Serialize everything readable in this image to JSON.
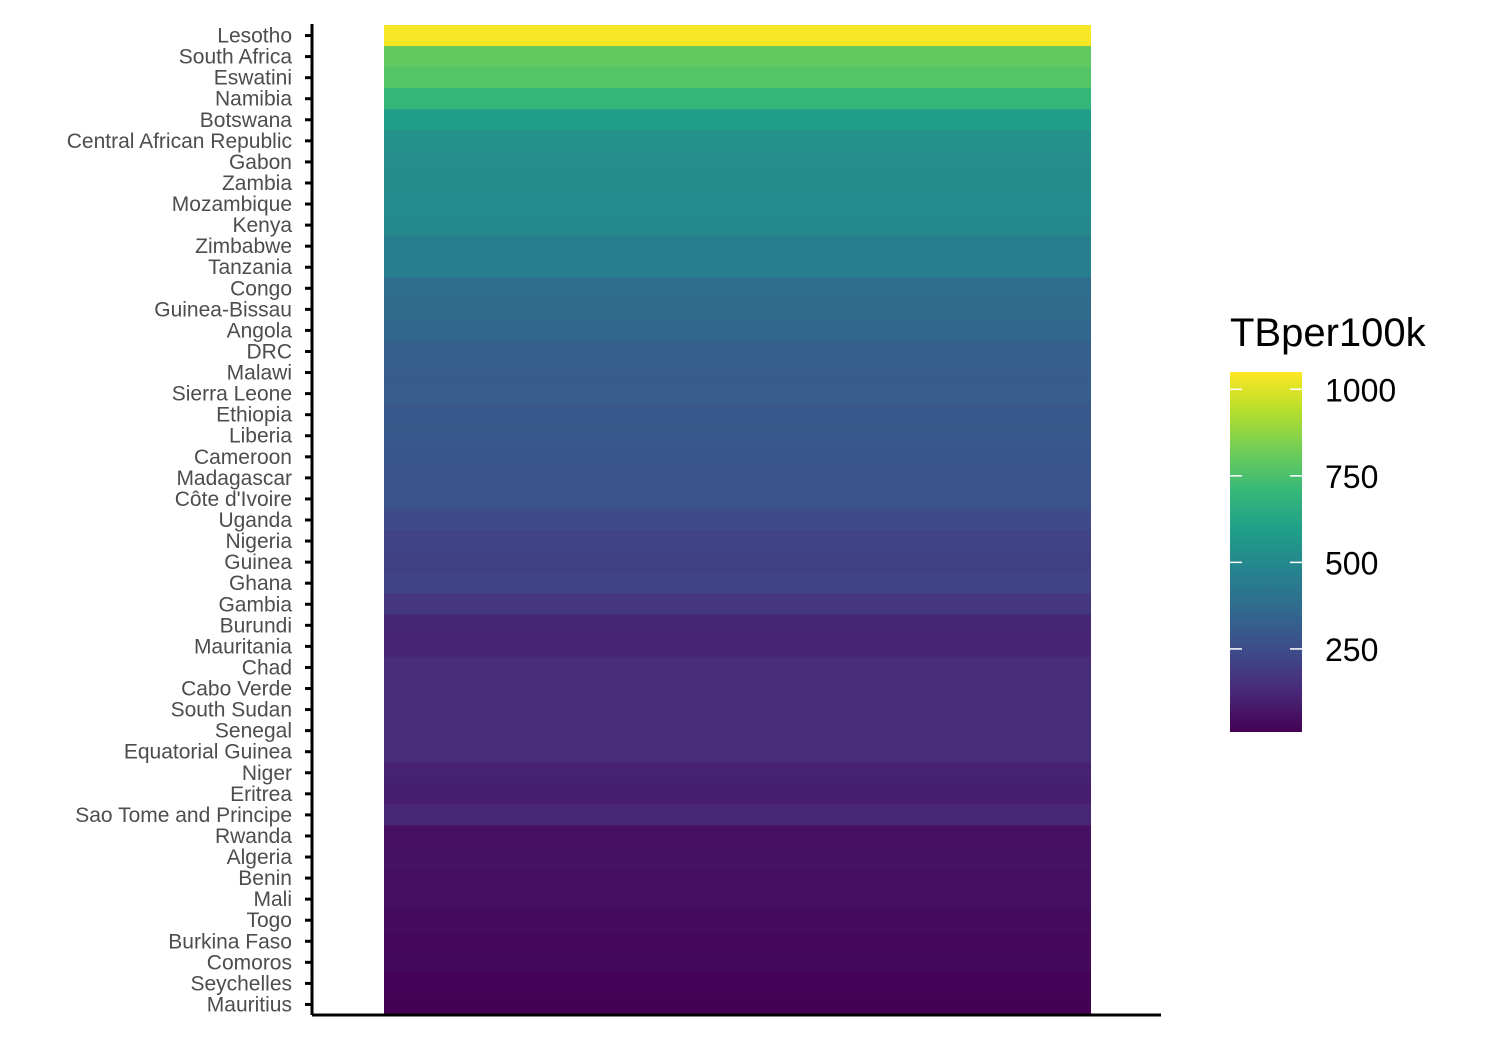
{
  "chart_data": {
    "type": "heatmap",
    "title": "",
    "xlabel": "",
    "ylabel": "",
    "categories": [
      "Lesotho",
      "South Africa",
      "Eswatini",
      "Namibia",
      "Botswana",
      "Central African Republic",
      "Gabon",
      "Zambia",
      "Mozambique",
      "Kenya",
      "Zimbabwe",
      "Tanzania",
      "Congo",
      "Guinea-Bissau",
      "Angola",
      "DRC",
      "Malawi",
      "Sierra Leone",
      "Ethiopia",
      "Liberia",
      "Cameroon",
      "Madagascar",
      "Côte d'Ivoire",
      "Uganda",
      "Nigeria",
      "Guinea",
      "Ghana",
      "Gambia",
      "Burundi",
      "Mauritania",
      "Chad",
      "Cabo Verde",
      "South Sudan",
      "Senegal",
      "Equatorial Guinea",
      "Niger",
      "Eritrea",
      "Sao Tome and Principe",
      "Rwanda",
      "Algeria",
      "Benin",
      "Mali",
      "Togo",
      "Burkina Faso",
      "Comoros",
      "Seychelles",
      "Mauritius"
    ],
    "values": [
      1040,
      795,
      770,
      700,
      586,
      540,
      521,
      517,
      515,
      496,
      460,
      460,
      375,
      370,
      351,
      321,
      315,
      313,
      295,
      294,
      285,
      279,
      270,
      240,
      219,
      207,
      217,
      173,
      120,
      116,
      142,
      140,
      140,
      140,
      140,
      109,
      94,
      122,
      56,
      60,
      53,
      52,
      40,
      31,
      35,
      15,
      13
    ],
    "legend": {
      "title": "TBper100k",
      "ticks": [
        1000,
        750,
        500,
        250
      ],
      "range": [
        10,
        1050
      ],
      "placement": "right"
    },
    "colors": {
      "viridis": [
        "#440154",
        "#482878",
        "#3E4A89",
        "#31688E",
        "#26828E",
        "#1F9E89",
        "#35B779",
        "#6DCD59",
        "#B4DE2C",
        "#FDE725"
      ],
      "axis": "#000000",
      "tick_label": "#4d4d4d"
    },
    "grid": false
  }
}
